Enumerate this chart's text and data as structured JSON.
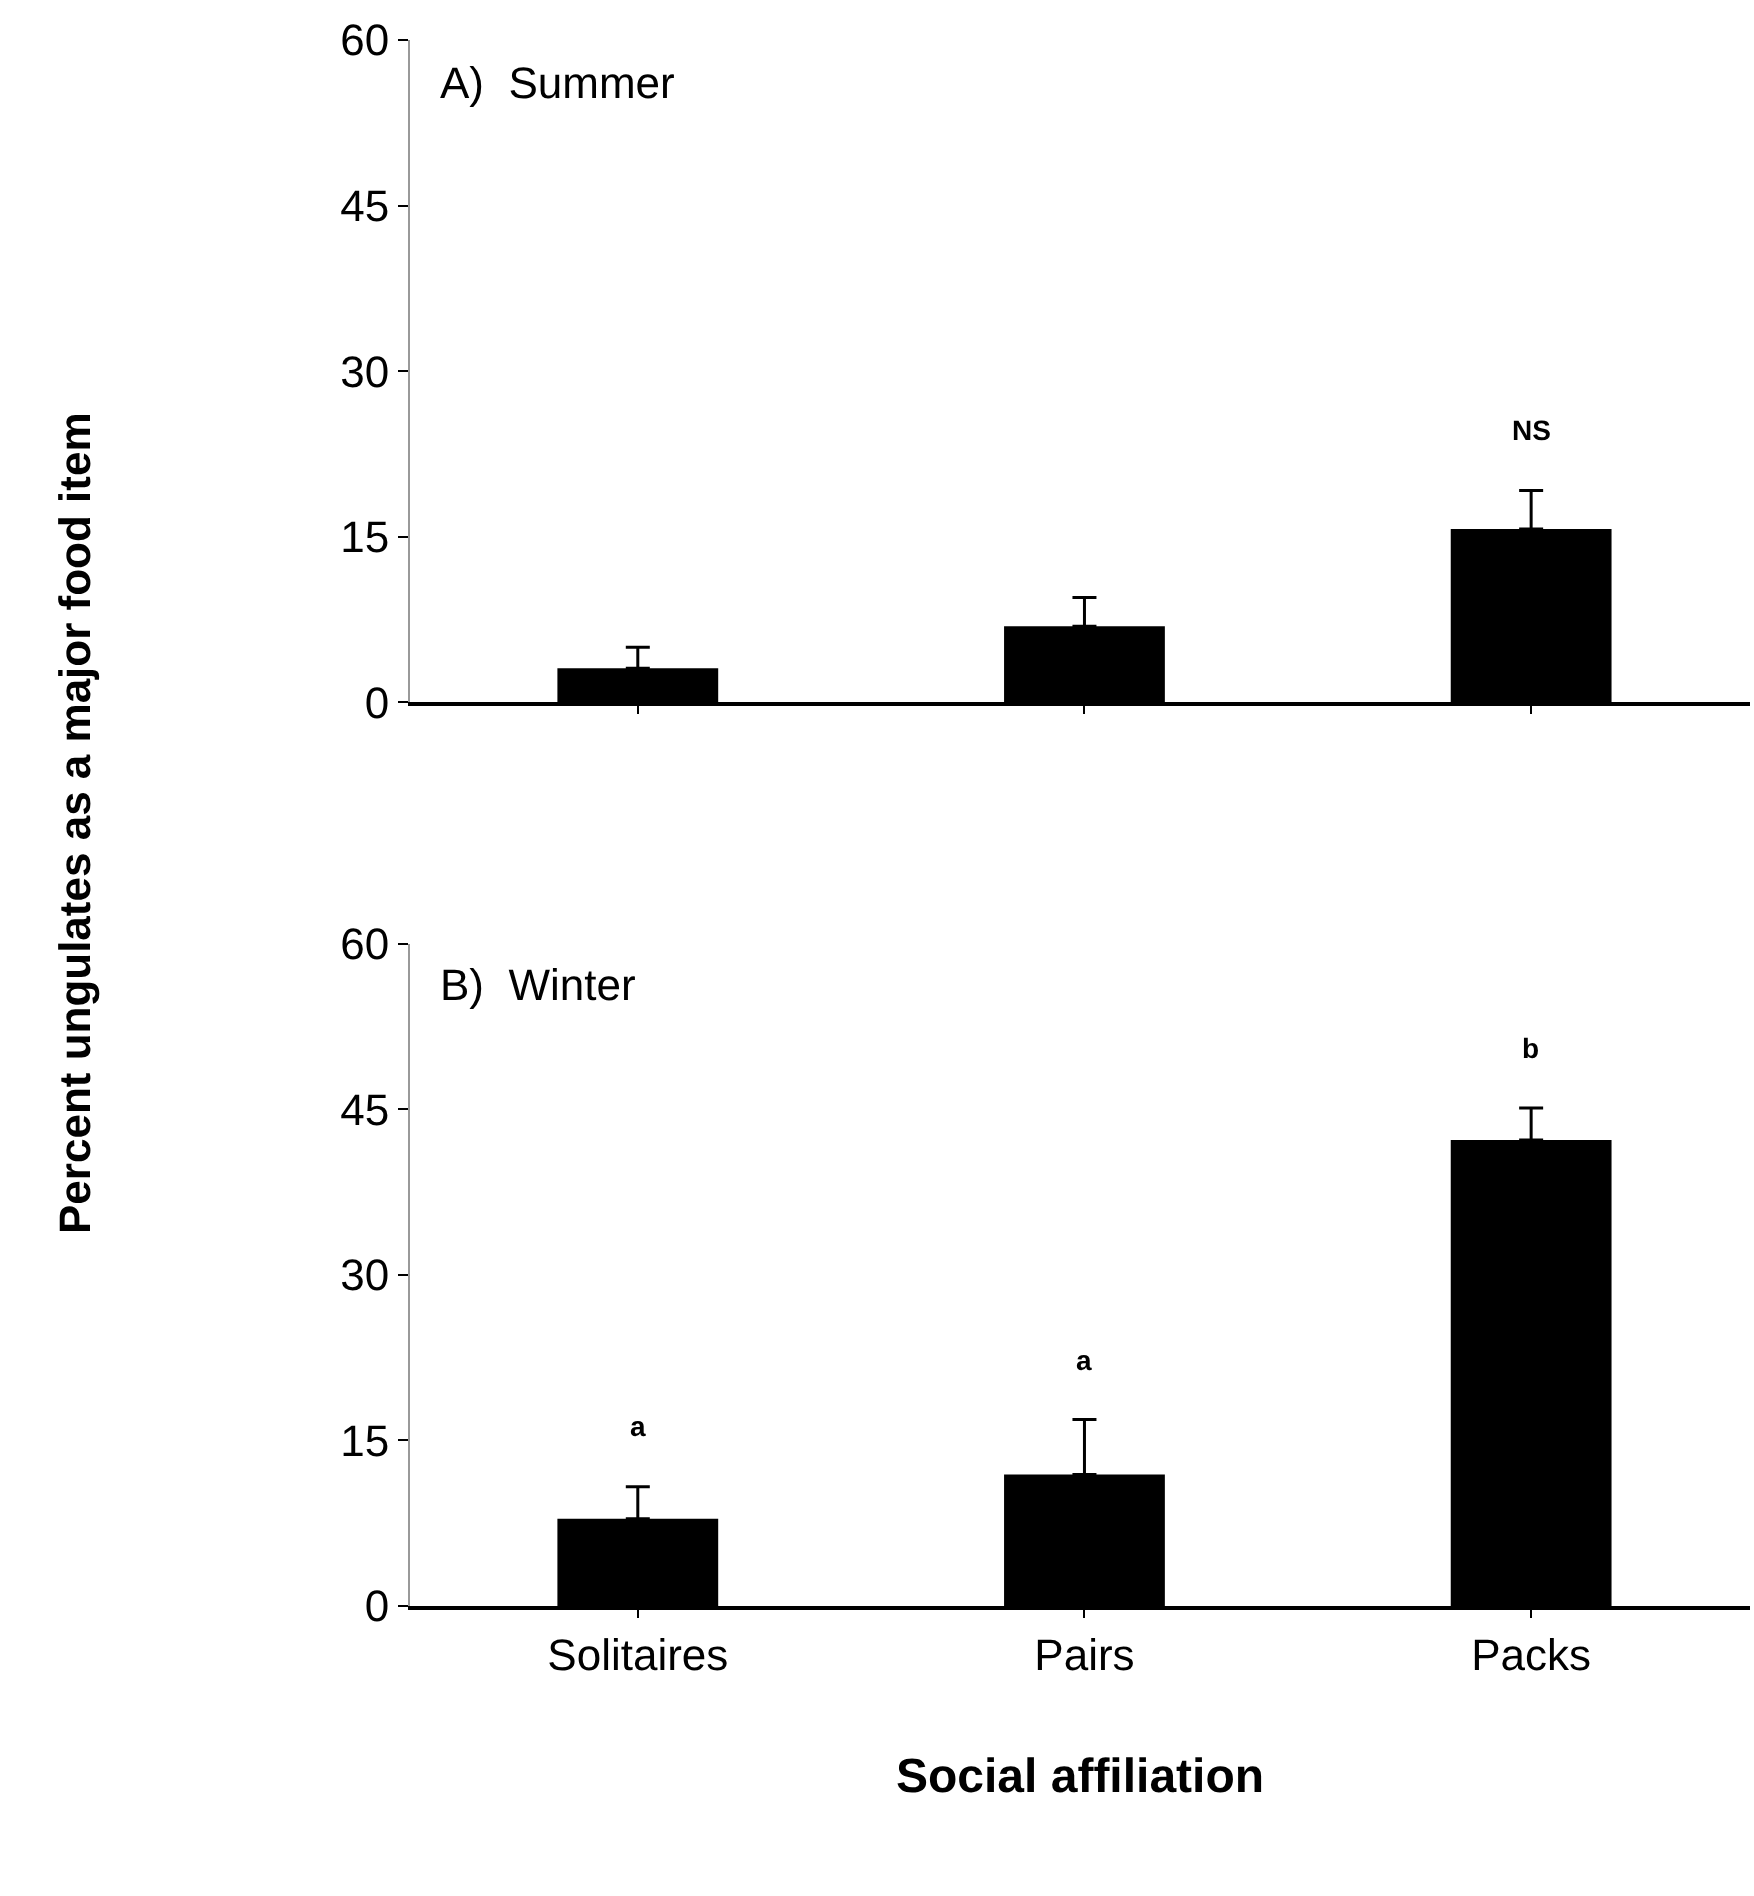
{
  "chart_data": [
    {
      "type": "bar",
      "title": "A)  Summer",
      "ylabel": "Percent ungulates as a major food item",
      "categories": [
        null,
        null,
        null
      ],
      "values": [
        3.1,
        6.9,
        15.7
      ],
      "errors": [
        [
          3.1,
          5.0
        ],
        [
          6.9,
          9.5
        ],
        [
          15.7,
          19.2
        ]
      ],
      "color": "#000000",
      "ylim": [
        0,
        60
      ],
      "yticks": [
        0,
        15,
        30,
        45,
        60
      ],
      "tick_labels": "y",
      "annotations": [
        "NS"
      ]
    },
    {
      "type": "bar",
      "title": "B)  Winter",
      "xlabel": "Social affiliation",
      "categories": [
        "Solitaires",
        "Pairs",
        "Packs"
      ],
      "values": [
        7.9,
        11.9,
        42.2
      ],
      "errors": [
        [
          7.9,
          10.8
        ],
        [
          11.9,
          16.9
        ],
        [
          42.2,
          45.1
        ]
      ],
      "color": "#000000",
      "ylim": [
        0,
        60
      ],
      "yticks": [
        0,
        15,
        30,
        45,
        60
      ],
      "annotations": [
        "a",
        "a",
        "b"
      ]
    }
  ]
}
